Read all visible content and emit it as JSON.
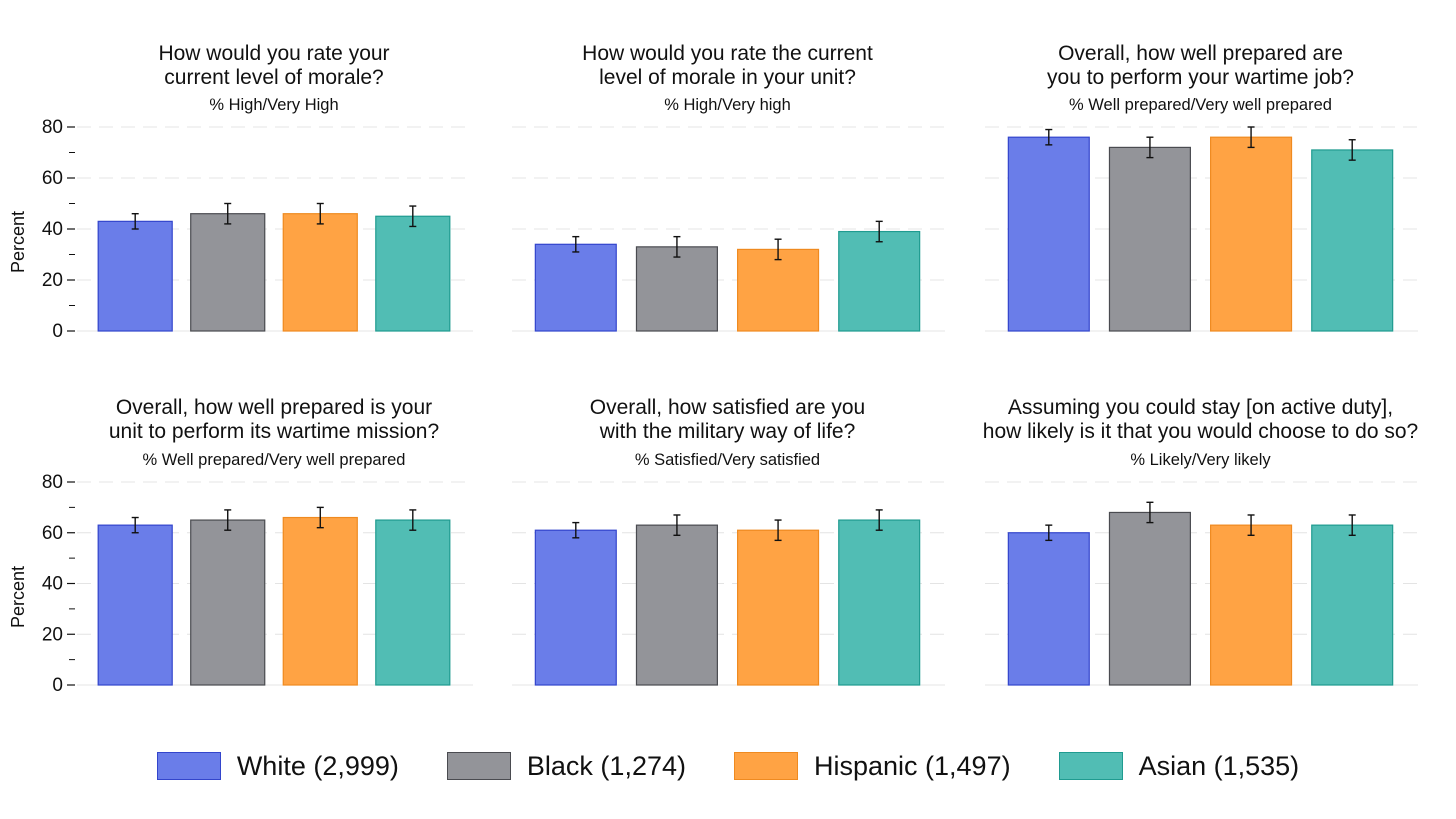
{
  "chart_data": {
    "type": "bar",
    "categories": [
      "White (2,999)",
      "Black (1,274)",
      "Hispanic (1,497)",
      "Asian (1,535)"
    ],
    "colors": {
      "fill": [
        "#6a7de9",
        "#939499",
        "#ffa344",
        "#51bdb4"
      ],
      "stroke": [
        "#3345cc",
        "#4a4b50",
        "#ef8a20",
        "#1f9b90"
      ]
    },
    "ylabel": "Percent",
    "ylim": [
      0,
      80
    ],
    "yticks": [
      "0",
      "20",
      "40",
      "60",
      "80"
    ],
    "grid": true,
    "error_bars": true,
    "legend_position": "bottom",
    "panels": [
      {
        "title": [
          "How would you rate your",
          "current level of morale?"
        ],
        "subtitle": "% High/Very High",
        "values": [
          43,
          46,
          46,
          45
        ],
        "ci_low": [
          40,
          42,
          42,
          41
        ],
        "ci_high": [
          46,
          50,
          50,
          49
        ]
      },
      {
        "title": [
          "How would you rate the current",
          "level of morale in your unit?"
        ],
        "subtitle": "% High/Very high",
        "values": [
          34,
          33,
          32,
          39
        ],
        "ci_low": [
          31,
          29,
          28,
          35
        ],
        "ci_high": [
          37,
          37,
          36,
          43
        ]
      },
      {
        "title": [
          "Overall, how well prepared are",
          "you to perform your wartime job?"
        ],
        "subtitle": "% Well prepared/Very well prepared",
        "values": [
          76,
          72,
          76,
          71
        ],
        "ci_low": [
          73,
          68,
          72,
          67
        ],
        "ci_high": [
          79,
          76,
          80,
          75
        ]
      },
      {
        "title": [
          "Overall, how well prepared is your",
          "unit to perform its wartime mission?"
        ],
        "subtitle": "% Well prepared/Very well prepared",
        "values": [
          63,
          65,
          66,
          65
        ],
        "ci_low": [
          60,
          61,
          62,
          61
        ],
        "ci_high": [
          66,
          69,
          70,
          69
        ]
      },
      {
        "title": [
          "Overall, how satisfied are you",
          "with the military way of life?"
        ],
        "subtitle": "% Satisfied/Very satisfied",
        "values": [
          61,
          63,
          61,
          65
        ],
        "ci_low": [
          58,
          59,
          57,
          61
        ],
        "ci_high": [
          64,
          67,
          65,
          69
        ]
      },
      {
        "title": [
          "Assuming you could stay [on active duty],",
          "how likely is it that you would choose to do so?"
        ],
        "subtitle": "% Likely/Very likely",
        "values": [
          60,
          68,
          63,
          63
        ],
        "ci_low": [
          57,
          64,
          59,
          59
        ],
        "ci_high": [
          63,
          72,
          67,
          67
        ]
      }
    ]
  }
}
